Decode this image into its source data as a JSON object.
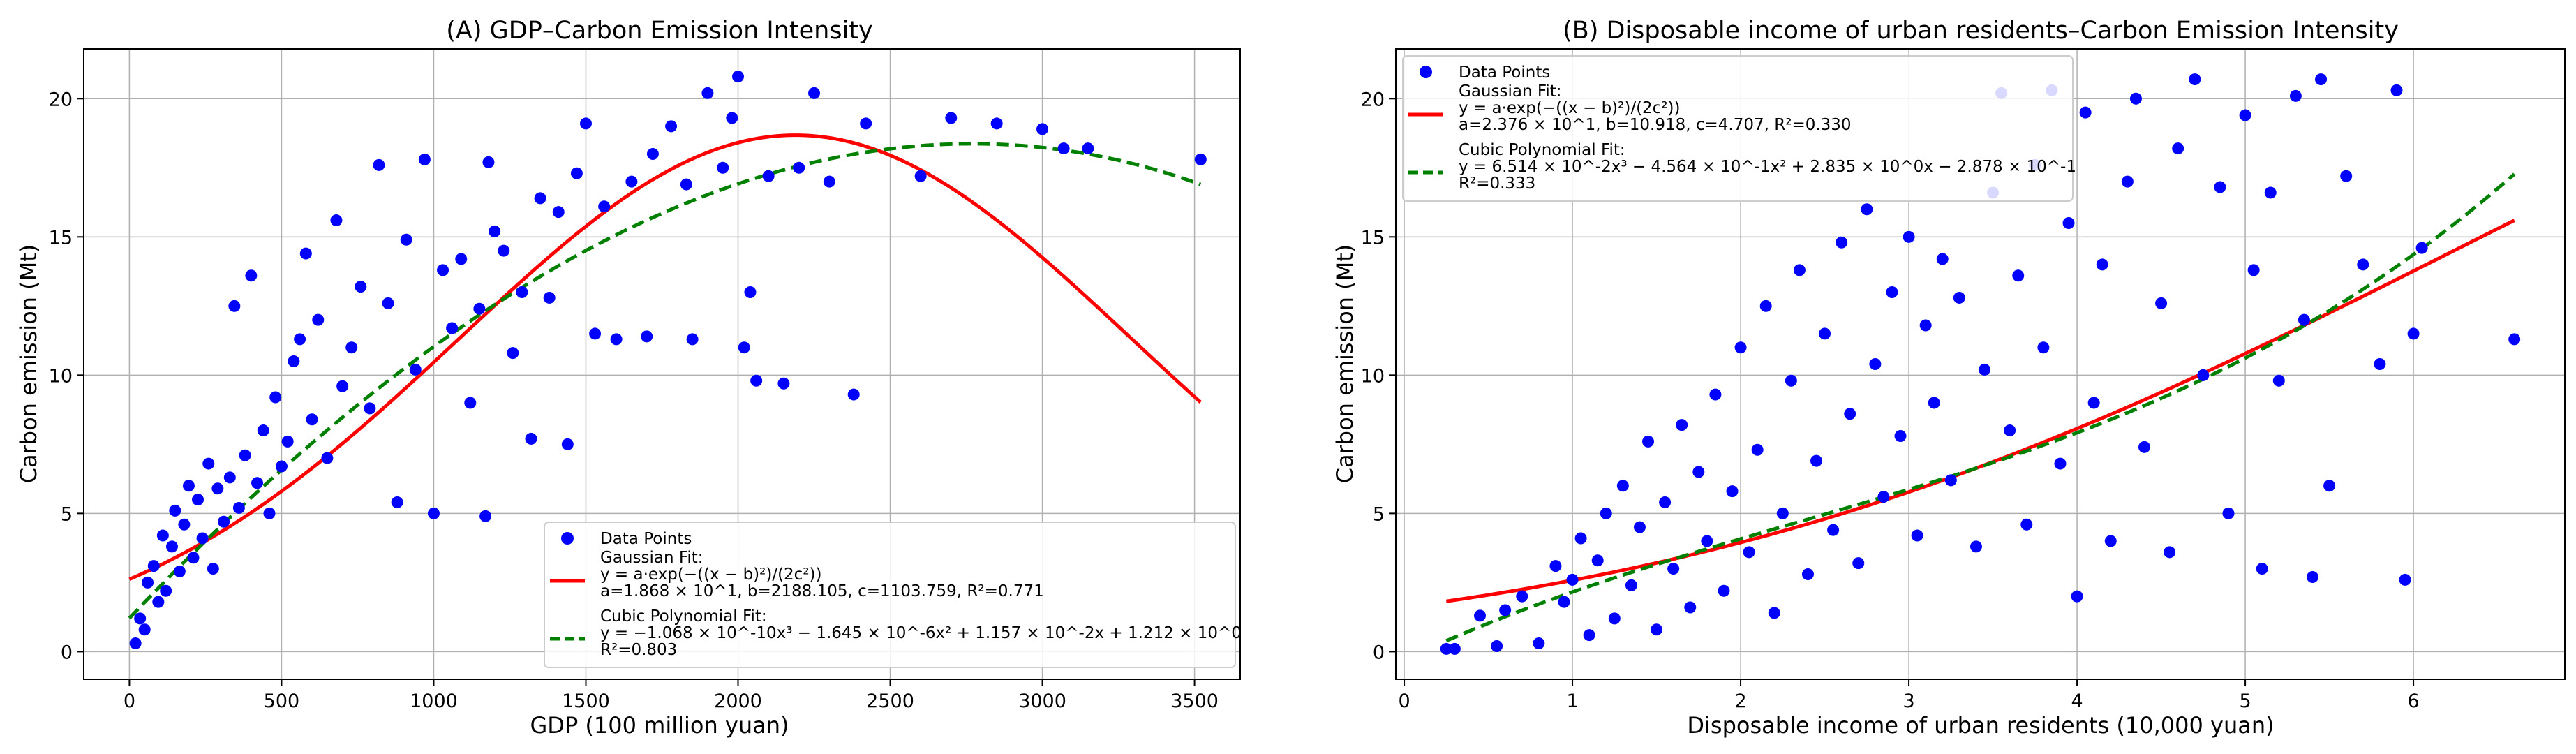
{
  "figure": {
    "background": "#ffffff",
    "grid_color": "#b0b0b0"
  },
  "chart_data": [
    {
      "id": "A",
      "type": "scatter",
      "title": "(A) GDP–Carbon Emission Intensity",
      "xlabel": "GDP (100 million yuan)",
      "ylabel": "Carbon emission (Mt)",
      "xlim": [
        -150,
        3650
      ],
      "ylim": [
        -1.0,
        21.8
      ],
      "xticks": [
        0,
        500,
        1000,
        1500,
        2000,
        2500,
        3000,
        3500
      ],
      "yticks": [
        0,
        5,
        10,
        15,
        20
      ],
      "grid": true,
      "legend_position": "lower-right",
      "scatter_color": "#0000ff",
      "points_sample": [
        [
          20,
          0.3
        ],
        [
          35,
          1.2
        ],
        [
          50,
          0.8
        ],
        [
          60,
          2.5
        ],
        [
          80,
          3.1
        ],
        [
          95,
          1.8
        ],
        [
          110,
          4.2
        ],
        [
          120,
          2.2
        ],
        [
          140,
          3.8
        ],
        [
          150,
          5.1
        ],
        [
          165,
          2.9
        ],
        [
          180,
          4.6
        ],
        [
          195,
          6.0
        ],
        [
          210,
          3.4
        ],
        [
          225,
          5.5
        ],
        [
          240,
          4.1
        ],
        [
          260,
          6.8
        ],
        [
          275,
          3.0
        ],
        [
          290,
          5.9
        ],
        [
          310,
          4.7
        ],
        [
          330,
          6.3
        ],
        [
          345,
          12.5
        ],
        [
          360,
          5.2
        ],
        [
          380,
          7.1
        ],
        [
          400,
          13.6
        ],
        [
          420,
          6.1
        ],
        [
          440,
          8.0
        ],
        [
          460,
          5.0
        ],
        [
          480,
          9.2
        ],
        [
          500,
          6.7
        ],
        [
          520,
          7.6
        ],
        [
          540,
          10.5
        ],
        [
          560,
          11.3
        ],
        [
          580,
          14.4
        ],
        [
          600,
          8.4
        ],
        [
          620,
          12.0
        ],
        [
          650,
          7.0
        ],
        [
          680,
          15.6
        ],
        [
          700,
          9.6
        ],
        [
          730,
          11.0
        ],
        [
          760,
          13.2
        ],
        [
          790,
          8.8
        ],
        [
          820,
          17.6
        ],
        [
          850,
          12.6
        ],
        [
          880,
          5.4
        ],
        [
          910,
          14.9
        ],
        [
          940,
          10.2
        ],
        [
          970,
          17.8
        ],
        [
          1000,
          5.0
        ],
        [
          1030,
          13.8
        ],
        [
          1060,
          11.7
        ],
        [
          1090,
          14.2
        ],
        [
          1120,
          9.0
        ],
        [
          1150,
          12.4
        ],
        [
          1170,
          4.9
        ],
        [
          1180,
          17.7
        ],
        [
          1200,
          15.2
        ],
        [
          1230,
          14.5
        ],
        [
          1260,
          10.8
        ],
        [
          1290,
          13.0
        ],
        [
          1320,
          7.7
        ],
        [
          1350,
          16.4
        ],
        [
          1380,
          12.8
        ],
        [
          1410,
          15.9
        ],
        [
          1440,
          7.5
        ],
        [
          1470,
          17.3
        ],
        [
          1500,
          19.1
        ],
        [
          1530,
          11.5
        ],
        [
          1560,
          16.1
        ],
        [
          1600,
          11.3
        ],
        [
          1650,
          17.0
        ],
        [
          1700,
          11.4
        ],
        [
          1720,
          18.0
        ],
        [
          1780,
          19.0
        ],
        [
          1830,
          16.9
        ],
        [
          1850,
          11.3
        ],
        [
          1900,
          20.2
        ],
        [
          1950,
          17.5
        ],
        [
          1980,
          19.3
        ],
        [
          2000,
          20.8
        ],
        [
          2020,
          11.0
        ],
        [
          2040,
          13.0
        ],
        [
          2060,
          9.8
        ],
        [
          2100,
          17.2
        ],
        [
          2150,
          9.7
        ],
        [
          2200,
          17.5
        ],
        [
          2250,
          20.2
        ],
        [
          2300,
          17.0
        ],
        [
          2380,
          9.3
        ],
        [
          2420,
          19.1
        ],
        [
          2600,
          17.2
        ],
        [
          2700,
          19.3
        ],
        [
          2850,
          19.1
        ],
        [
          3000,
          18.9
        ],
        [
          3070,
          18.2
        ],
        [
          3150,
          18.2
        ],
        [
          3520,
          17.8
        ]
      ],
      "series": [
        {
          "name": "Data Points",
          "kind": "scatter",
          "color": "#0000ff"
        },
        {
          "name": "Gaussian Fit",
          "kind": "line",
          "color": "#ff0000",
          "style": "solid",
          "equation": "y = a·exp(−((x − b)²)/(2c²))",
          "params_text": "a=1.868 × 10^1, b=2188.105, c=1103.759, R²=0.771",
          "a": 18.68,
          "b": 2188.105,
          "c": 1103.759,
          "x_range": [
            0,
            3520
          ]
        },
        {
          "name": "Cubic Polynomial Fit",
          "kind": "line",
          "color": "#008000",
          "style": "dashed",
          "equation": "y = −1.068 × 10^-10x³ − 1.645 × 10^-6x² + 1.157 × 10^-2x + 1.212 × 10^0",
          "r2_text": "R²=0.803",
          "coeffs": [
            -1.068e-10,
            -1.645e-06,
            0.01157,
            1.212
          ],
          "x_range": [
            0,
            3520
          ]
        }
      ]
    },
    {
      "id": "B",
      "type": "scatter",
      "title": "(B) Disposable income of urban residents–Carbon Emission Intensity",
      "xlabel": "Disposable income of urban residents (10,000 yuan)",
      "ylabel": "Carbon emission (Mt)",
      "xlim": [
        -0.05,
        6.9
      ],
      "ylim": [
        -1.0,
        21.8
      ],
      "xticks": [
        0,
        1,
        2,
        3,
        4,
        5,
        6
      ],
      "yticks": [
        0,
        5,
        10,
        15,
        20
      ],
      "grid": true,
      "legend_position": "top-left",
      "scatter_color": "#0000ff",
      "points_sample": [
        [
          0.25,
          0.1
        ],
        [
          0.3,
          0.1
        ],
        [
          0.45,
          1.3
        ],
        [
          0.55,
          0.2
        ],
        [
          0.6,
          1.5
        ],
        [
          0.7,
          2.0
        ],
        [
          0.8,
          0.3
        ],
        [
          0.9,
          3.1
        ],
        [
          0.95,
          1.8
        ],
        [
          1.0,
          2.6
        ],
        [
          1.05,
          4.1
        ],
        [
          1.1,
          0.6
        ],
        [
          1.15,
          3.3
        ],
        [
          1.2,
          5.0
        ],
        [
          1.25,
          1.2
        ],
        [
          1.3,
          6.0
        ],
        [
          1.35,
          2.4
        ],
        [
          1.4,
          4.5
        ],
        [
          1.45,
          7.6
        ],
        [
          1.5,
          0.8
        ],
        [
          1.55,
          5.4
        ],
        [
          1.6,
          3.0
        ],
        [
          1.65,
          8.2
        ],
        [
          1.7,
          1.6
        ],
        [
          1.75,
          6.5
        ],
        [
          1.8,
          4.0
        ],
        [
          1.85,
          9.3
        ],
        [
          1.9,
          2.2
        ],
        [
          1.95,
          5.8
        ],
        [
          2.0,
          11.0
        ],
        [
          2.05,
          3.6
        ],
        [
          2.1,
          7.3
        ],
        [
          2.15,
          12.5
        ],
        [
          2.2,
          1.4
        ],
        [
          2.25,
          5.0
        ],
        [
          2.3,
          9.8
        ],
        [
          2.35,
          13.8
        ],
        [
          2.4,
          2.8
        ],
        [
          2.45,
          6.9
        ],
        [
          2.5,
          11.5
        ],
        [
          2.55,
          4.4
        ],
        [
          2.6,
          14.8
        ],
        [
          2.65,
          8.6
        ],
        [
          2.7,
          3.2
        ],
        [
          2.75,
          16.0
        ],
        [
          2.8,
          10.4
        ],
        [
          2.85,
          5.6
        ],
        [
          2.9,
          13.0
        ],
        [
          2.95,
          7.8
        ],
        [
          3.0,
          15.0
        ],
        [
          3.05,
          4.2
        ],
        [
          3.1,
          11.8
        ],
        [
          3.15,
          9.0
        ],
        [
          3.2,
          14.2
        ],
        [
          3.25,
          6.2
        ],
        [
          3.3,
          12.8
        ],
        [
          3.4,
          3.8
        ],
        [
          3.45,
          10.2
        ],
        [
          3.5,
          16.6
        ],
        [
          3.55,
          20.2
        ],
        [
          3.6,
          8.0
        ],
        [
          3.65,
          13.6
        ],
        [
          3.7,
          4.6
        ],
        [
          3.75,
          17.6
        ],
        [
          3.8,
          11.0
        ],
        [
          3.85,
          20.3
        ],
        [
          3.9,
          6.8
        ],
        [
          3.95,
          15.5
        ],
        [
          4.0,
          2.0
        ],
        [
          4.05,
          19.5
        ],
        [
          4.1,
          9.0
        ],
        [
          4.15,
          14.0
        ],
        [
          4.2,
          4.0
        ],
        [
          4.3,
          17.0
        ],
        [
          4.35,
          20.0
        ],
        [
          4.4,
          7.4
        ],
        [
          4.5,
          12.6
        ],
        [
          4.55,
          3.6
        ],
        [
          4.6,
          18.2
        ],
        [
          4.7,
          20.7
        ],
        [
          4.75,
          10.0
        ],
        [
          4.85,
          16.8
        ],
        [
          4.9,
          5.0
        ],
        [
          5.0,
          19.4
        ],
        [
          5.05,
          13.8
        ],
        [
          5.1,
          3.0
        ],
        [
          5.15,
          16.6
        ],
        [
          5.2,
          9.8
        ],
        [
          5.3,
          20.1
        ],
        [
          5.35,
          12.0
        ],
        [
          5.4,
          2.7
        ],
        [
          5.45,
          20.7
        ],
        [
          5.5,
          6.0
        ],
        [
          5.6,
          17.2
        ],
        [
          5.7,
          14.0
        ],
        [
          5.8,
          10.4
        ],
        [
          5.9,
          20.3
        ],
        [
          5.95,
          2.6
        ],
        [
          6.0,
          11.5
        ],
        [
          6.05,
          14.6
        ],
        [
          6.6,
          11.3
        ]
      ],
      "series": [
        {
          "name": "Data Points",
          "kind": "scatter",
          "color": "#0000ff"
        },
        {
          "name": "Gaussian Fit",
          "kind": "line",
          "color": "#ff0000",
          "style": "solid",
          "equation": "y = a·exp(−((x − b)²)/(2c²))",
          "params_text": "a=2.376 × 10^1, b=10.918, c=4.707, R²=0.330",
          "a": 23.76,
          "b": 10.918,
          "c": 4.707,
          "x_range": [
            0.25,
            6.6
          ]
        },
        {
          "name": "Cubic Polynomial Fit",
          "kind": "line",
          "color": "#008000",
          "style": "dashed",
          "equation": "y = 6.514 × 10^-2x³ − 4.564 × 10^-1x² + 2.835 × 10^0x − 2.878 × 10^-1",
          "r2_text": "R²=0.333",
          "coeffs": [
            0.06514,
            -0.4564,
            2.835,
            -0.2878
          ],
          "x_range": [
            0.25,
            6.6
          ]
        }
      ]
    }
  ]
}
